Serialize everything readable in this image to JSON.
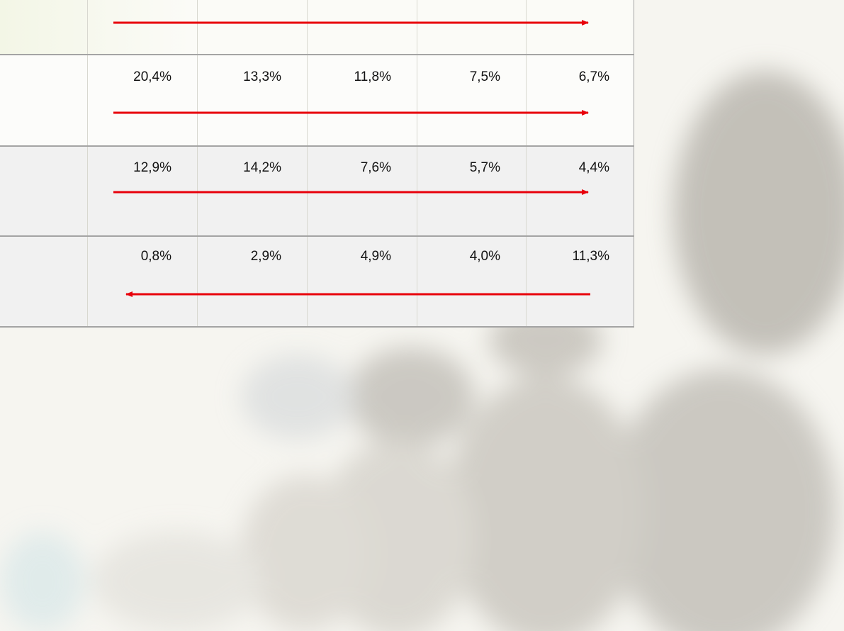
{
  "table": {
    "rows": [
      [
        "20,4%",
        "13,3%",
        "11,8%",
        "7,5%",
        "6,7%"
      ],
      [
        "12,9%",
        "14,2%",
        "7,6%",
        "5,7%",
        "4,4%"
      ],
      [
        "0,8%",
        "2,9%",
        "4,9%",
        "4,0%",
        "11,3%"
      ]
    ]
  }
}
